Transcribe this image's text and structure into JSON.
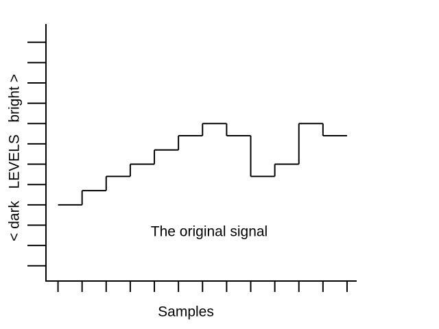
{
  "chart_data": {
    "type": "step",
    "ylabel": "< dark   LEVELS   bright >",
    "xlabel": "Samples",
    "annotation": "The original signal",
    "x": [
      0,
      1,
      2,
      3,
      4,
      5,
      6,
      7,
      8,
      9,
      10,
      11
    ],
    "values": [
      4,
      4.7,
      5.4,
      6,
      6.7,
      7.4,
      8,
      7.4,
      5.4,
      6,
      8,
      7.4
    ],
    "color": "#000000",
    "xlim": [
      -0.5,
      12.4
    ],
    "xticks": [
      0,
      1,
      2,
      3,
      4,
      5,
      6,
      7,
      8,
      9,
      10,
      11,
      12
    ],
    "ylim": [
      0.25,
      12.9
    ],
    "yticks": [
      1,
      2,
      3,
      4,
      5,
      6,
      7,
      8,
      9,
      10,
      11,
      12
    ],
    "grid": false
  }
}
